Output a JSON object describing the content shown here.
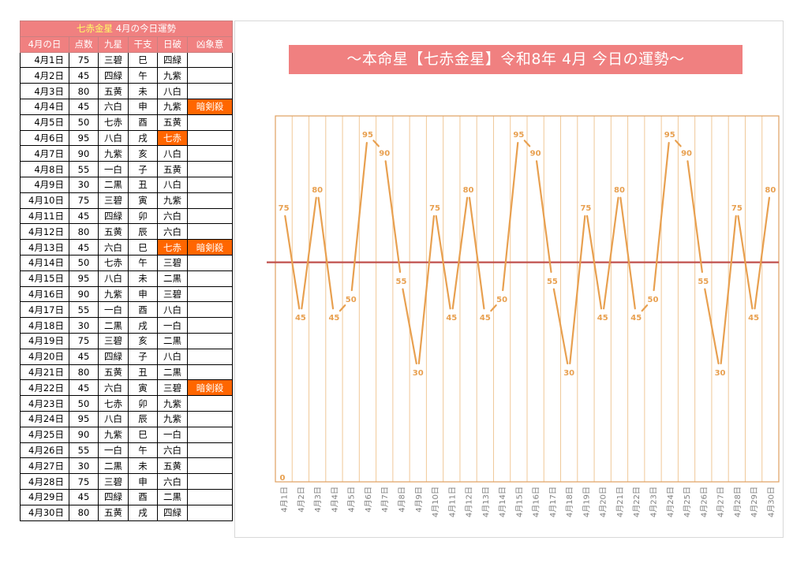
{
  "table": {
    "title_star": "七赤金星",
    "title_rest": "4月の今日運勢",
    "headers": [
      "4月の日",
      "点数",
      "九星",
      "干支",
      "日破",
      "凶象意"
    ],
    "rows": [
      {
        "day": "4月1日",
        "score": "75",
        "star": "三碧",
        "eto": "巳",
        "nichiha": "四緑",
        "kyo": ""
      },
      {
        "day": "4月2日",
        "score": "45",
        "star": "四緑",
        "eto": "午",
        "nichiha": "九紫",
        "kyo": ""
      },
      {
        "day": "4月3日",
        "score": "80",
        "star": "五黄",
        "eto": "未",
        "nichiha": "八白",
        "kyo": ""
      },
      {
        "day": "4月4日",
        "score": "45",
        "star": "六白",
        "eto": "申",
        "nichiha": "九紫",
        "kyo": "暗剣殺"
      },
      {
        "day": "4月5日",
        "score": "50",
        "star": "七赤",
        "eto": "酉",
        "nichiha": "五黄",
        "kyo": ""
      },
      {
        "day": "4月6日",
        "score": "95",
        "star": "八白",
        "eto": "戌",
        "nichiha": "七赤",
        "kyo": "",
        "nichiha_bad": true
      },
      {
        "day": "4月7日",
        "score": "90",
        "star": "九紫",
        "eto": "亥",
        "nichiha": "八白",
        "kyo": ""
      },
      {
        "day": "4月8日",
        "score": "55",
        "star": "一白",
        "eto": "子",
        "nichiha": "五黄",
        "kyo": ""
      },
      {
        "day": "4月9日",
        "score": "30",
        "star": "二黒",
        "eto": "丑",
        "nichiha": "八白",
        "kyo": ""
      },
      {
        "day": "4月10日",
        "score": "75",
        "star": "三碧",
        "eto": "寅",
        "nichiha": "九紫",
        "kyo": ""
      },
      {
        "day": "4月11日",
        "score": "45",
        "star": "四緑",
        "eto": "卯",
        "nichiha": "六白",
        "kyo": ""
      },
      {
        "day": "4月12日",
        "score": "80",
        "star": "五黄",
        "eto": "辰",
        "nichiha": "六白",
        "kyo": ""
      },
      {
        "day": "4月13日",
        "score": "45",
        "star": "六白",
        "eto": "巳",
        "nichiha": "七赤",
        "kyo": "暗剣殺",
        "nichiha_bad": true
      },
      {
        "day": "4月14日",
        "score": "50",
        "star": "七赤",
        "eto": "午",
        "nichiha": "三碧",
        "kyo": ""
      },
      {
        "day": "4月15日",
        "score": "95",
        "star": "八白",
        "eto": "未",
        "nichiha": "二黒",
        "kyo": ""
      },
      {
        "day": "4月16日",
        "score": "90",
        "star": "九紫",
        "eto": "申",
        "nichiha": "三碧",
        "kyo": ""
      },
      {
        "day": "4月17日",
        "score": "55",
        "star": "一白",
        "eto": "酉",
        "nichiha": "八白",
        "kyo": ""
      },
      {
        "day": "4月18日",
        "score": "30",
        "star": "二黒",
        "eto": "戌",
        "nichiha": "一白",
        "kyo": ""
      },
      {
        "day": "4月19日",
        "score": "75",
        "star": "三碧",
        "eto": "亥",
        "nichiha": "二黒",
        "kyo": ""
      },
      {
        "day": "4月20日",
        "score": "45",
        "star": "四緑",
        "eto": "子",
        "nichiha": "八白",
        "kyo": ""
      },
      {
        "day": "4月21日",
        "score": "80",
        "star": "五黄",
        "eto": "丑",
        "nichiha": "二黒",
        "kyo": ""
      },
      {
        "day": "4月22日",
        "score": "45",
        "star": "六白",
        "eto": "寅",
        "nichiha": "三碧",
        "kyo": "暗剣殺"
      },
      {
        "day": "4月23日",
        "score": "50",
        "star": "七赤",
        "eto": "卯",
        "nichiha": "九紫",
        "kyo": ""
      },
      {
        "day": "4月24日",
        "score": "95",
        "star": "八白",
        "eto": "辰",
        "nichiha": "九紫",
        "kyo": ""
      },
      {
        "day": "4月25日",
        "score": "90",
        "star": "九紫",
        "eto": "巳",
        "nichiha": "一白",
        "kyo": ""
      },
      {
        "day": "4月26日",
        "score": "55",
        "star": "一白",
        "eto": "午",
        "nichiha": "六白",
        "kyo": ""
      },
      {
        "day": "4月27日",
        "score": "30",
        "star": "二黒",
        "eto": "未",
        "nichiha": "五黄",
        "kyo": ""
      },
      {
        "day": "4月28日",
        "score": "75",
        "star": "三碧",
        "eto": "申",
        "nichiha": "六白",
        "kyo": ""
      },
      {
        "day": "4月29日",
        "score": "45",
        "star": "四緑",
        "eto": "酉",
        "nichiha": "二黒",
        "kyo": ""
      },
      {
        "day": "4月30日",
        "score": "80",
        "star": "五黄",
        "eto": "戌",
        "nichiha": "四緑",
        "kyo": ""
      }
    ]
  },
  "chart_data": {
    "type": "line",
    "title": "～本命星【七赤金星】令和8年 4月 今日の運勢～",
    "categories": [
      "4月1日",
      "4月2日",
      "4月3日",
      "4月4日",
      "4月5日",
      "4月6日",
      "4月7日",
      "4月8日",
      "4月9日",
      "4月10日",
      "4月11日",
      "4月12日",
      "4月13日",
      "4月14日",
      "4月15日",
      "4月16日",
      "4月17日",
      "4月18日",
      "4月19日",
      "4月20日",
      "4月21日",
      "4月22日",
      "4月23日",
      "4月24日",
      "4月25日",
      "4月26日",
      "4月27日",
      "4月28日",
      "4月29日",
      "4月30日"
    ],
    "values": [
      75,
      45,
      80,
      45,
      50,
      95,
      90,
      55,
      30,
      75,
      45,
      80,
      45,
      50,
      95,
      90,
      55,
      30,
      75,
      45,
      80,
      45,
      50,
      95,
      90,
      55,
      30,
      75,
      45,
      80
    ],
    "baseline_label": "0",
    "reference_line": 60,
    "ylim": [
      0,
      100
    ],
    "grid": "vertical",
    "colors": {
      "line": "#e8a050",
      "reference": "#c0504d",
      "grid": "#f0c898",
      "frame": "#e0a060"
    }
  }
}
